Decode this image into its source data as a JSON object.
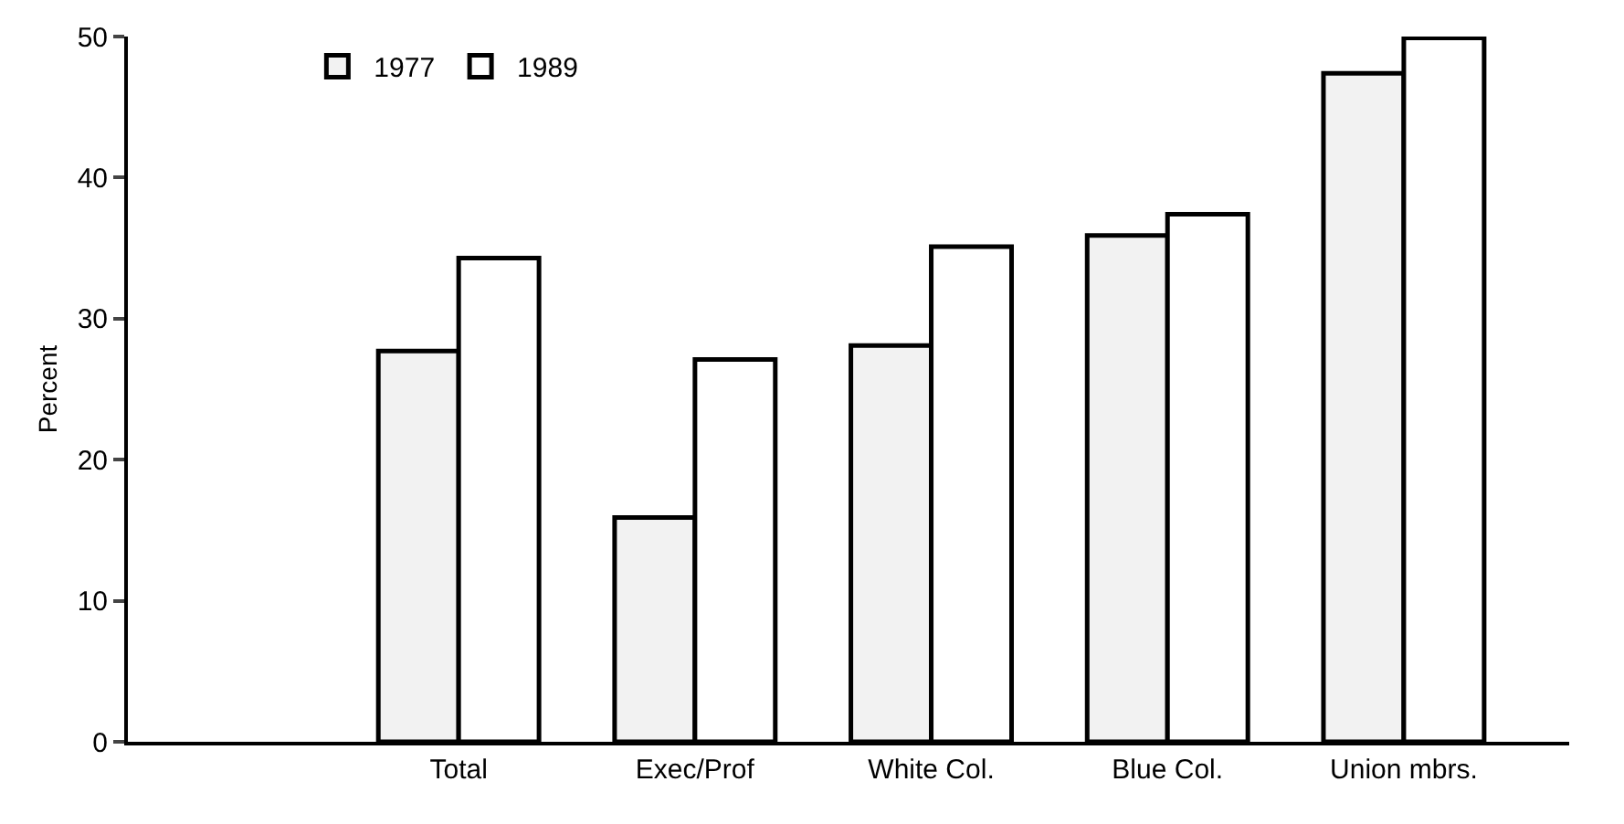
{
  "chart_data": {
    "type": "bar",
    "ylabel": "Percent",
    "categories": [
      "Total",
      "Exec/Prof",
      "White Col.",
      "Blue Col.",
      "Union mbrs."
    ],
    "series": [
      {
        "name": "1977",
        "color": "#f2f2f2",
        "values": [
          27.7,
          15.9,
          28.1,
          35.9,
          47.4
        ]
      },
      {
        "name": "1989",
        "color": "#ffffff",
        "values": [
          34.3,
          27.1,
          35.1,
          37.4,
          49.9
        ]
      }
    ],
    "ylim": [
      0,
      50
    ],
    "yticks": [
      0,
      10,
      20,
      30,
      40,
      50
    ],
    "grid": false,
    "legend": "top left"
  }
}
